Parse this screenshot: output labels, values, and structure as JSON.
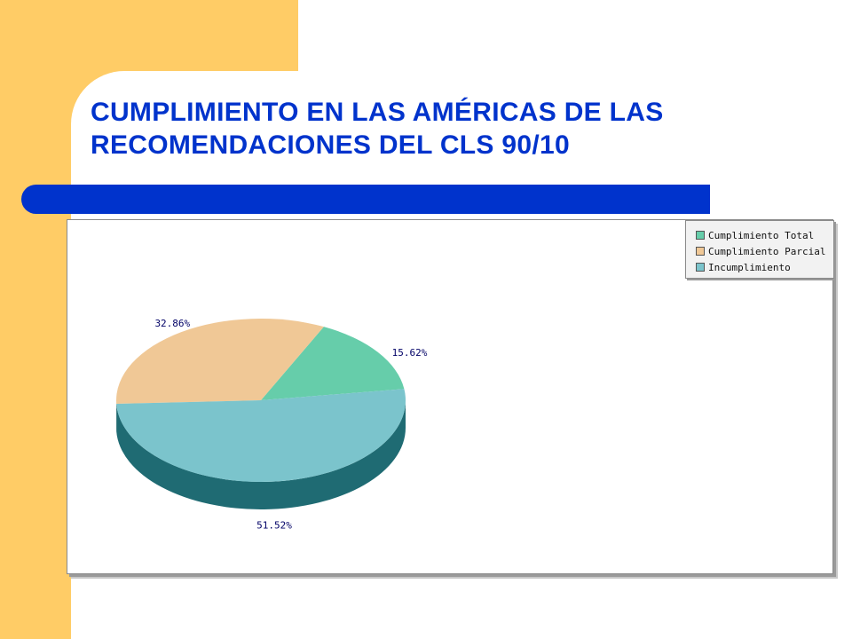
{
  "slide": {
    "title_lines": [
      "CUMPLIMIENTO EN LAS AMÉRICAS DE LAS",
      "RECOMENDACIONES DEL CLS 90/10"
    ],
    "colors": {
      "title": "#0033cc",
      "bar": "#0033cc",
      "decoration": "#ffcc66"
    }
  },
  "chart_data": {
    "type": "pie",
    "style": "3d",
    "title": "",
    "legend_position": "top-right",
    "categories": [
      "Cumplimiento Total",
      "Cumplimiento Parcial",
      "Incumplimiento"
    ],
    "values": [
      15.62,
      32.86,
      51.52
    ],
    "labels": [
      "15.62%",
      "32.86%",
      "51.52%"
    ],
    "colors": [
      "#66cdaa",
      "#f0c896",
      "#7bc4cc"
    ],
    "side_colors": [
      "#2e8b6e",
      "#b08a5c",
      "#1f6b73"
    ]
  }
}
